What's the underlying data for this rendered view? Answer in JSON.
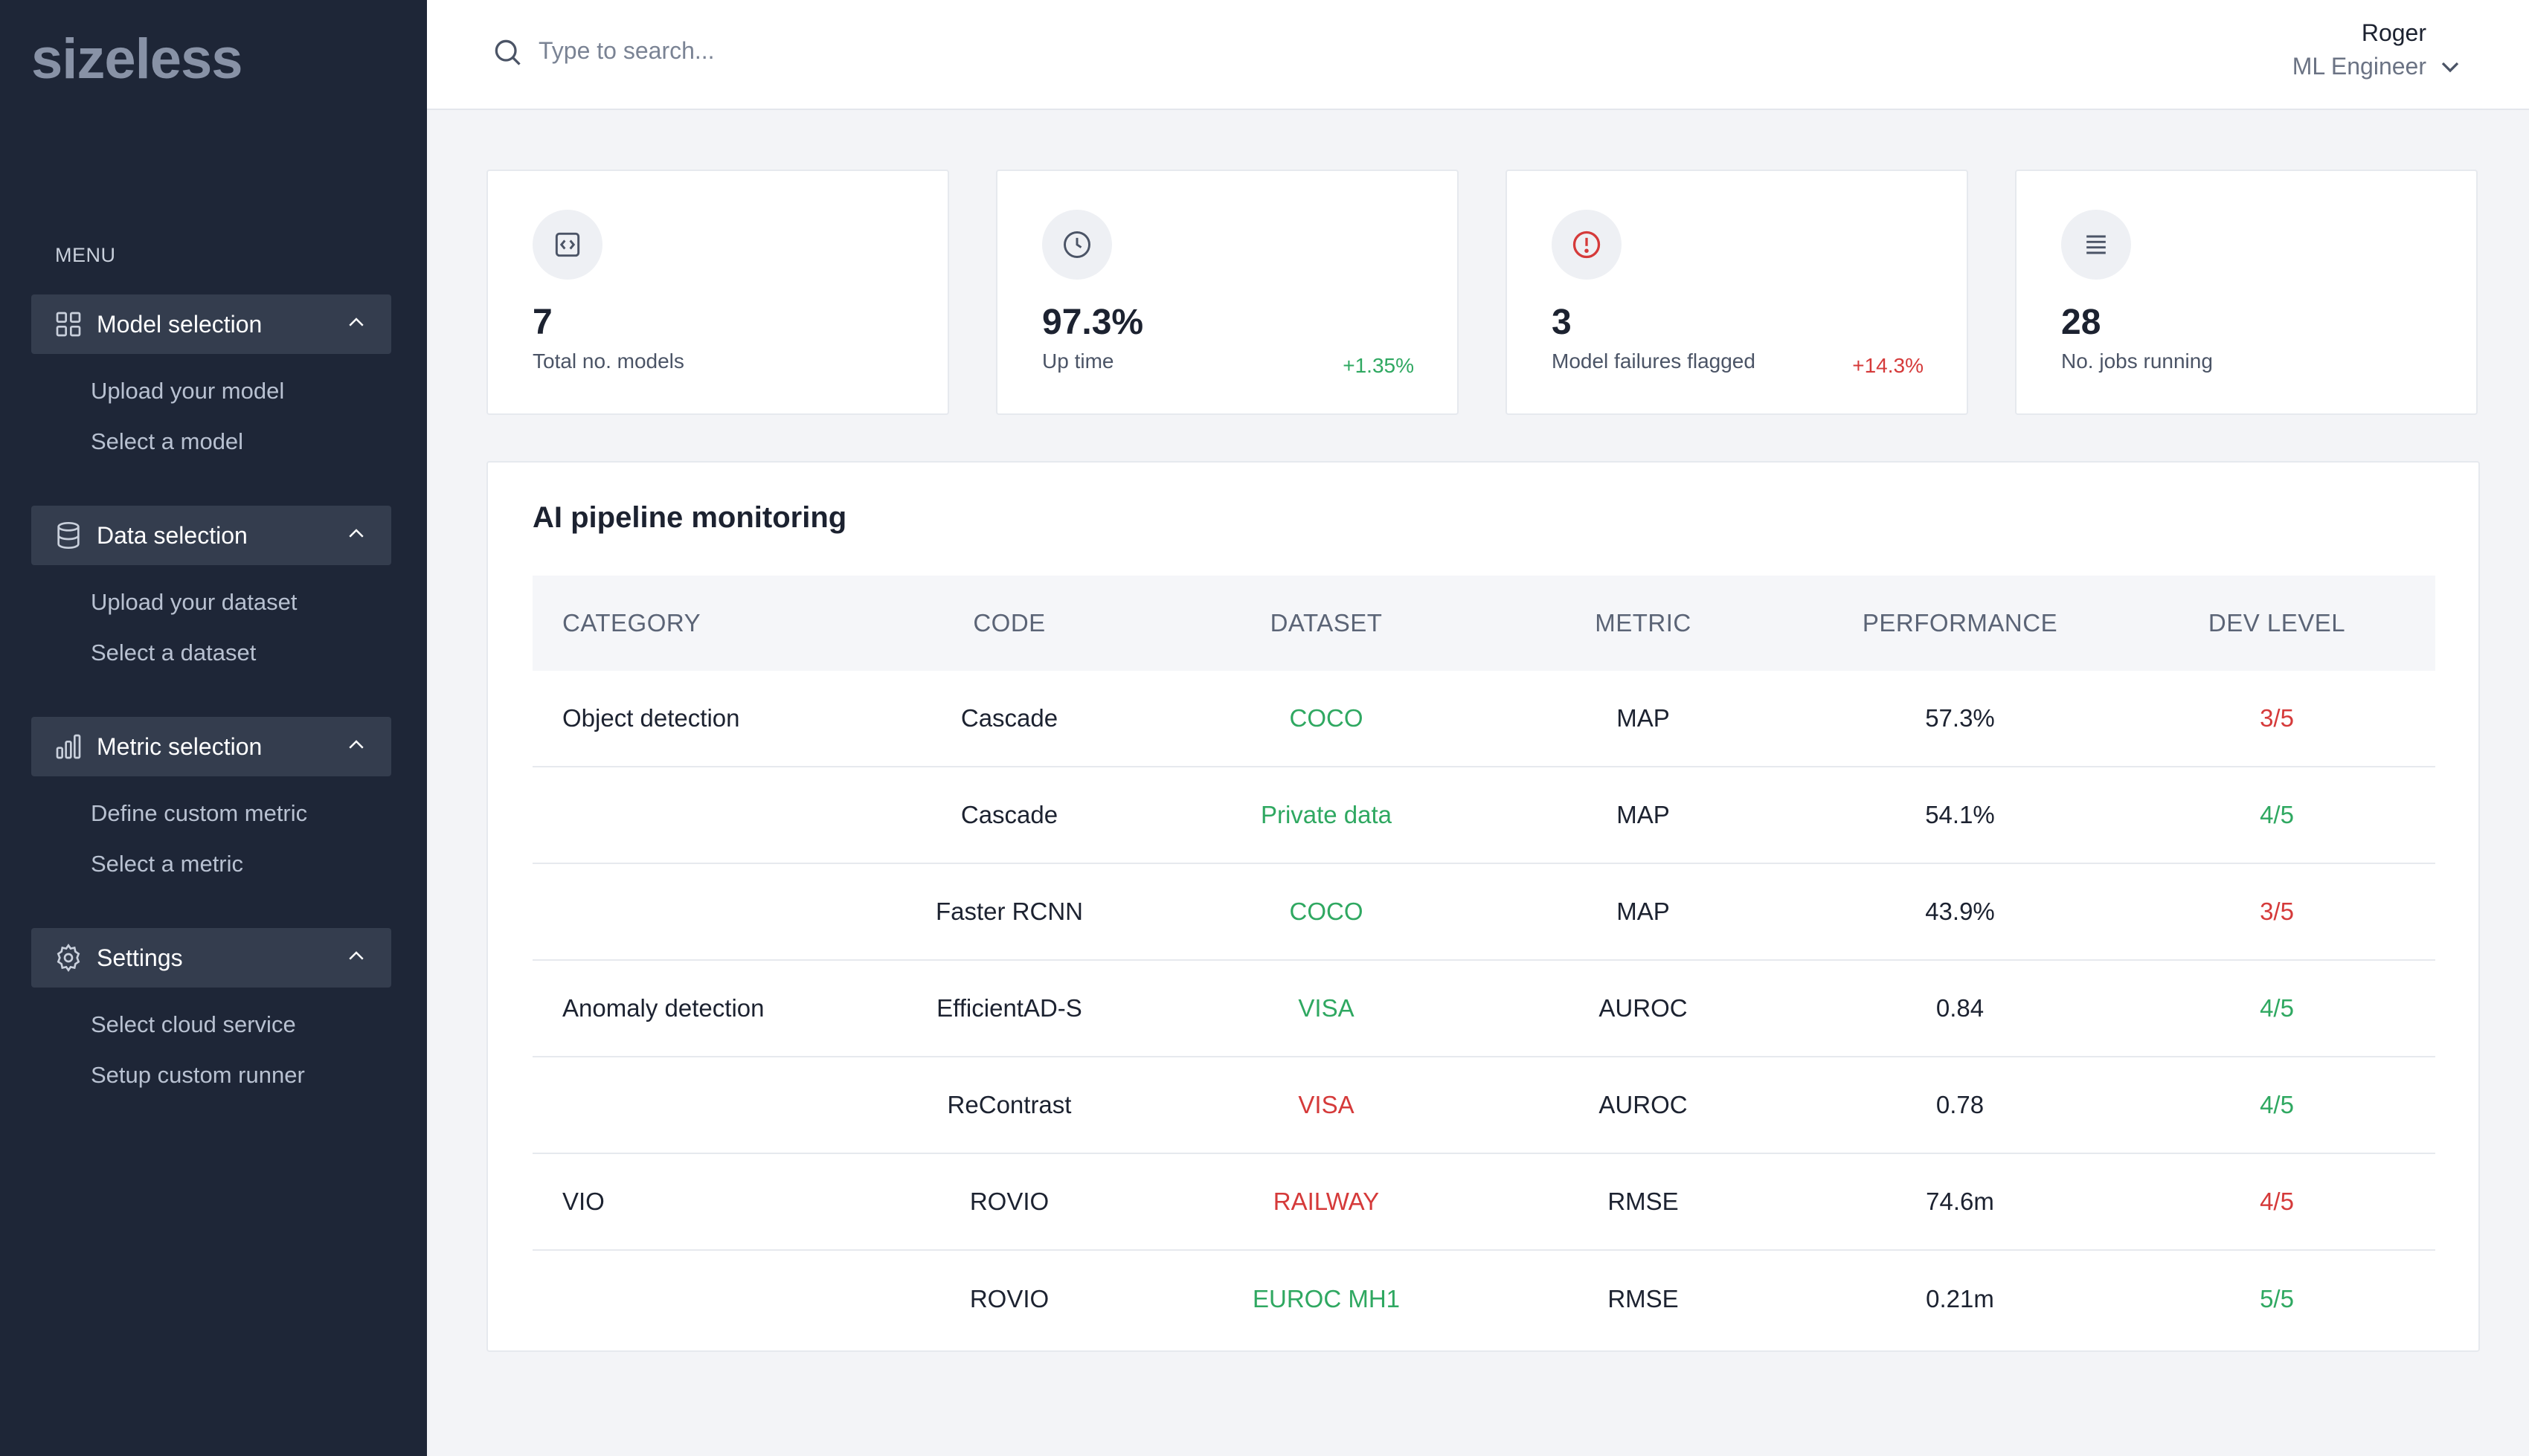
{
  "app": {
    "logo": "sizeless"
  },
  "sidebar": {
    "menu_label": "MENU",
    "groups": [
      {
        "label": "Model selection",
        "icon": "grid-icon",
        "items": [
          "Upload your model",
          "Select a model"
        ]
      },
      {
        "label": "Data selection",
        "icon": "database-icon",
        "items": [
          "Upload your dataset",
          "Select a dataset"
        ]
      },
      {
        "label": "Metric selection",
        "icon": "bar-chart-icon",
        "items": [
          "Define custom metric",
          "Select a metric"
        ]
      },
      {
        "label": "Settings",
        "icon": "gear-icon",
        "items": [
          "Select cloud service",
          "Setup custom runner"
        ]
      }
    ]
  },
  "header": {
    "search_placeholder": "Type to search...",
    "user_name": "Roger",
    "user_role": "ML Engineer"
  },
  "kpis": [
    {
      "icon": "code-icon",
      "value": "7",
      "caption": "Total no. models",
      "delta": ""
    },
    {
      "icon": "clock-icon",
      "value": "97.3%",
      "caption": "Up time",
      "delta": "+1.35%",
      "delta_color": "#2fa861"
    },
    {
      "icon": "alert-icon",
      "value": "3",
      "caption": "Model failures flagged",
      "delta": "+14.3%",
      "delta_color": "#d53a3a"
    },
    {
      "icon": "list-icon",
      "value": "28",
      "caption": "No. jobs running",
      "delta": ""
    }
  ],
  "table": {
    "title": "AI pipeline monitoring",
    "columns": [
      "CATEGORY",
      "CODE",
      "DATASET",
      "METRIC",
      "PERFORMANCE",
      "DEV LEVEL"
    ],
    "rows": [
      {
        "category": "Object detection",
        "code": "Cascade",
        "dataset": "COCO",
        "dataset_status": "green",
        "metric": "MAP",
        "performance": "57.3%",
        "dev_level": "3/5",
        "dev_status": "red"
      },
      {
        "category": "",
        "code": "Cascade",
        "dataset": "Private data",
        "dataset_status": "green",
        "metric": "MAP",
        "performance": "54.1%",
        "dev_level": "4/5",
        "dev_status": "green"
      },
      {
        "category": "",
        "code": "Faster RCNN",
        "dataset": "COCO",
        "dataset_status": "green",
        "metric": "MAP",
        "performance": "43.9%",
        "dev_level": "3/5",
        "dev_status": "red"
      },
      {
        "category": "Anomaly detection",
        "code": "EfficientAD-S",
        "dataset": "VISA",
        "dataset_status": "green",
        "metric": "AUROC",
        "performance": "0.84",
        "dev_level": "4/5",
        "dev_status": "green"
      },
      {
        "category": "",
        "code": "ReContrast",
        "dataset": "VISA",
        "dataset_status": "red",
        "metric": "AUROC",
        "performance": "0.78",
        "dev_level": "4/5",
        "dev_status": "green"
      },
      {
        "category": "VIO",
        "code": "ROVIO",
        "dataset": "RAILWAY",
        "dataset_status": "red",
        "metric": "RMSE",
        "performance": "74.6m",
        "dev_level": "4/5",
        "dev_status": "red"
      },
      {
        "category": "",
        "code": "ROVIO",
        "dataset": "EUROC MH1",
        "dataset_status": "green",
        "metric": "RMSE",
        "performance": "0.21m",
        "dev_level": "5/5",
        "dev_status": "green"
      }
    ]
  },
  "colors": {
    "sidebar_bg": "#1e2637",
    "accent_green": "#2fa861",
    "accent_red": "#d53a3a"
  }
}
